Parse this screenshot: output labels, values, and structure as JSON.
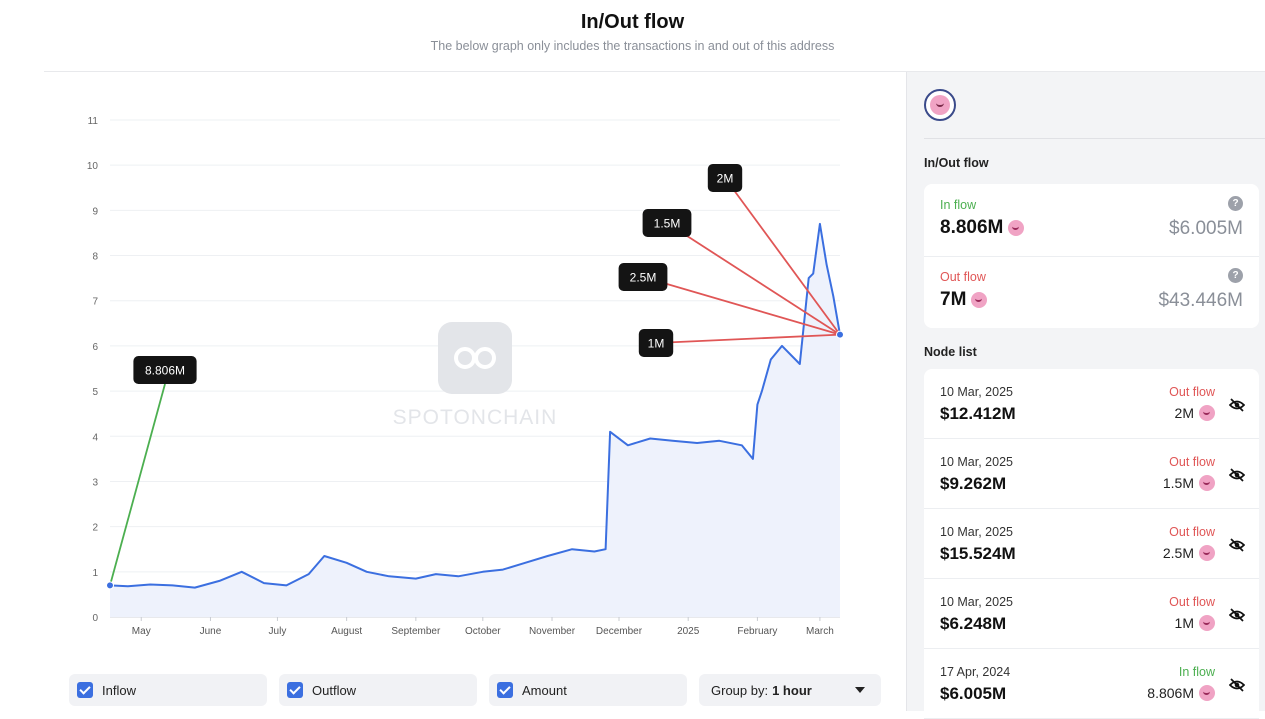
{
  "header": {
    "title": "In/Out flow",
    "subtitle": "The below graph only includes the transactions in and out of this address"
  },
  "colors": {
    "accent": "#3b6fe0",
    "inflow": "#4caf50",
    "outflow": "#e05656",
    "callout_bg": "#141414"
  },
  "chart_data": {
    "type": "area",
    "watermark": "SPOTONCHAIN",
    "y_ticks": [
      "0",
      "1",
      "2",
      "3",
      "4",
      "5",
      "6",
      "7",
      "8",
      "9",
      "10",
      "11"
    ],
    "ylim": [
      0,
      11
    ],
    "x_ticks": [
      "May",
      "June",
      "July",
      "August",
      "September",
      "October",
      "November",
      "December",
      "2025",
      "February",
      "March"
    ],
    "x": [
      "2024-04-17",
      "2024-04-25",
      "2024-05-05",
      "2024-05-15",
      "2024-05-25",
      "2024-06-05",
      "2024-06-15",
      "2024-06-25",
      "2024-07-05",
      "2024-07-15",
      "2024-07-22",
      "2024-08-01",
      "2024-08-10",
      "2024-08-20",
      "2024-09-01",
      "2024-09-10",
      "2024-09-20",
      "2024-10-01",
      "2024-10-10",
      "2024-10-20",
      "2024-10-30",
      "2024-11-10",
      "2024-11-20",
      "2024-11-25",
      "2024-11-27",
      "2024-12-05",
      "2024-12-15",
      "2024-12-25",
      "2025-01-05",
      "2025-01-15",
      "2025-01-25",
      "2025-01-30",
      "2025-02-01",
      "2025-02-03",
      "2025-02-07",
      "2025-02-12",
      "2025-02-20",
      "2025-02-24",
      "2025-02-26",
      "2025-03-01",
      "2025-03-04",
      "2025-03-07",
      "2025-03-10"
    ],
    "series": [
      {
        "values": [
          0.7,
          0.68,
          0.72,
          0.7,
          0.65,
          0.8,
          1.0,
          0.75,
          0.7,
          0.95,
          1.35,
          1.2,
          1.0,
          0.9,
          0.85,
          0.95,
          0.9,
          1.0,
          1.05,
          1.2,
          1.35,
          1.5,
          1.45,
          1.5,
          4.1,
          3.8,
          3.95,
          3.9,
          3.85,
          3.9,
          3.8,
          3.5,
          4.7,
          5.0,
          5.7,
          6.0,
          5.6,
          7.5,
          7.6,
          8.7,
          7.8,
          7.1,
          6.25
        ]
      }
    ],
    "callouts": [
      {
        "label": "8.806M",
        "type": "inflow",
        "date": "2024-04-17",
        "value": 0.7
      },
      {
        "label": "2M",
        "type": "outflow",
        "date": "2025-03-10",
        "value": 6.25
      },
      {
        "label": "1.5M",
        "type": "outflow",
        "date": "2025-03-10",
        "value": 6.25
      },
      {
        "label": "2.5M",
        "type": "outflow",
        "date": "2025-03-10",
        "value": 6.25
      },
      {
        "label": "1M",
        "type": "outflow",
        "date": "2025-03-10",
        "value": 6.25
      }
    ]
  },
  "controls": {
    "inflow_label": "Inflow",
    "outflow_label": "Outflow",
    "amount_label": "Amount",
    "groupby_label": "Group by:",
    "groupby_value": "1 hour"
  },
  "sidebar": {
    "section_title": "In/Out flow",
    "inflow": {
      "label": "In flow",
      "amount": "8.806M",
      "usd": "$6.005M"
    },
    "outflow": {
      "label": "Out flow",
      "amount": "7M",
      "usd": "$43.446M"
    },
    "node_list_title": "Node list",
    "nodes": [
      {
        "date": "10 Mar, 2025",
        "usd": "$12.412M",
        "direction": "Out flow",
        "amount": "2M"
      },
      {
        "date": "10 Mar, 2025",
        "usd": "$9.262M",
        "direction": "Out flow",
        "amount": "1.5M"
      },
      {
        "date": "10 Mar, 2025",
        "usd": "$15.524M",
        "direction": "Out flow",
        "amount": "2.5M"
      },
      {
        "date": "10 Mar, 2025",
        "usd": "$6.248M",
        "direction": "Out flow",
        "amount": "1M"
      },
      {
        "date": "17 Apr, 2024",
        "usd": "$6.005M",
        "direction": "In flow",
        "amount": "8.806M"
      }
    ]
  }
}
